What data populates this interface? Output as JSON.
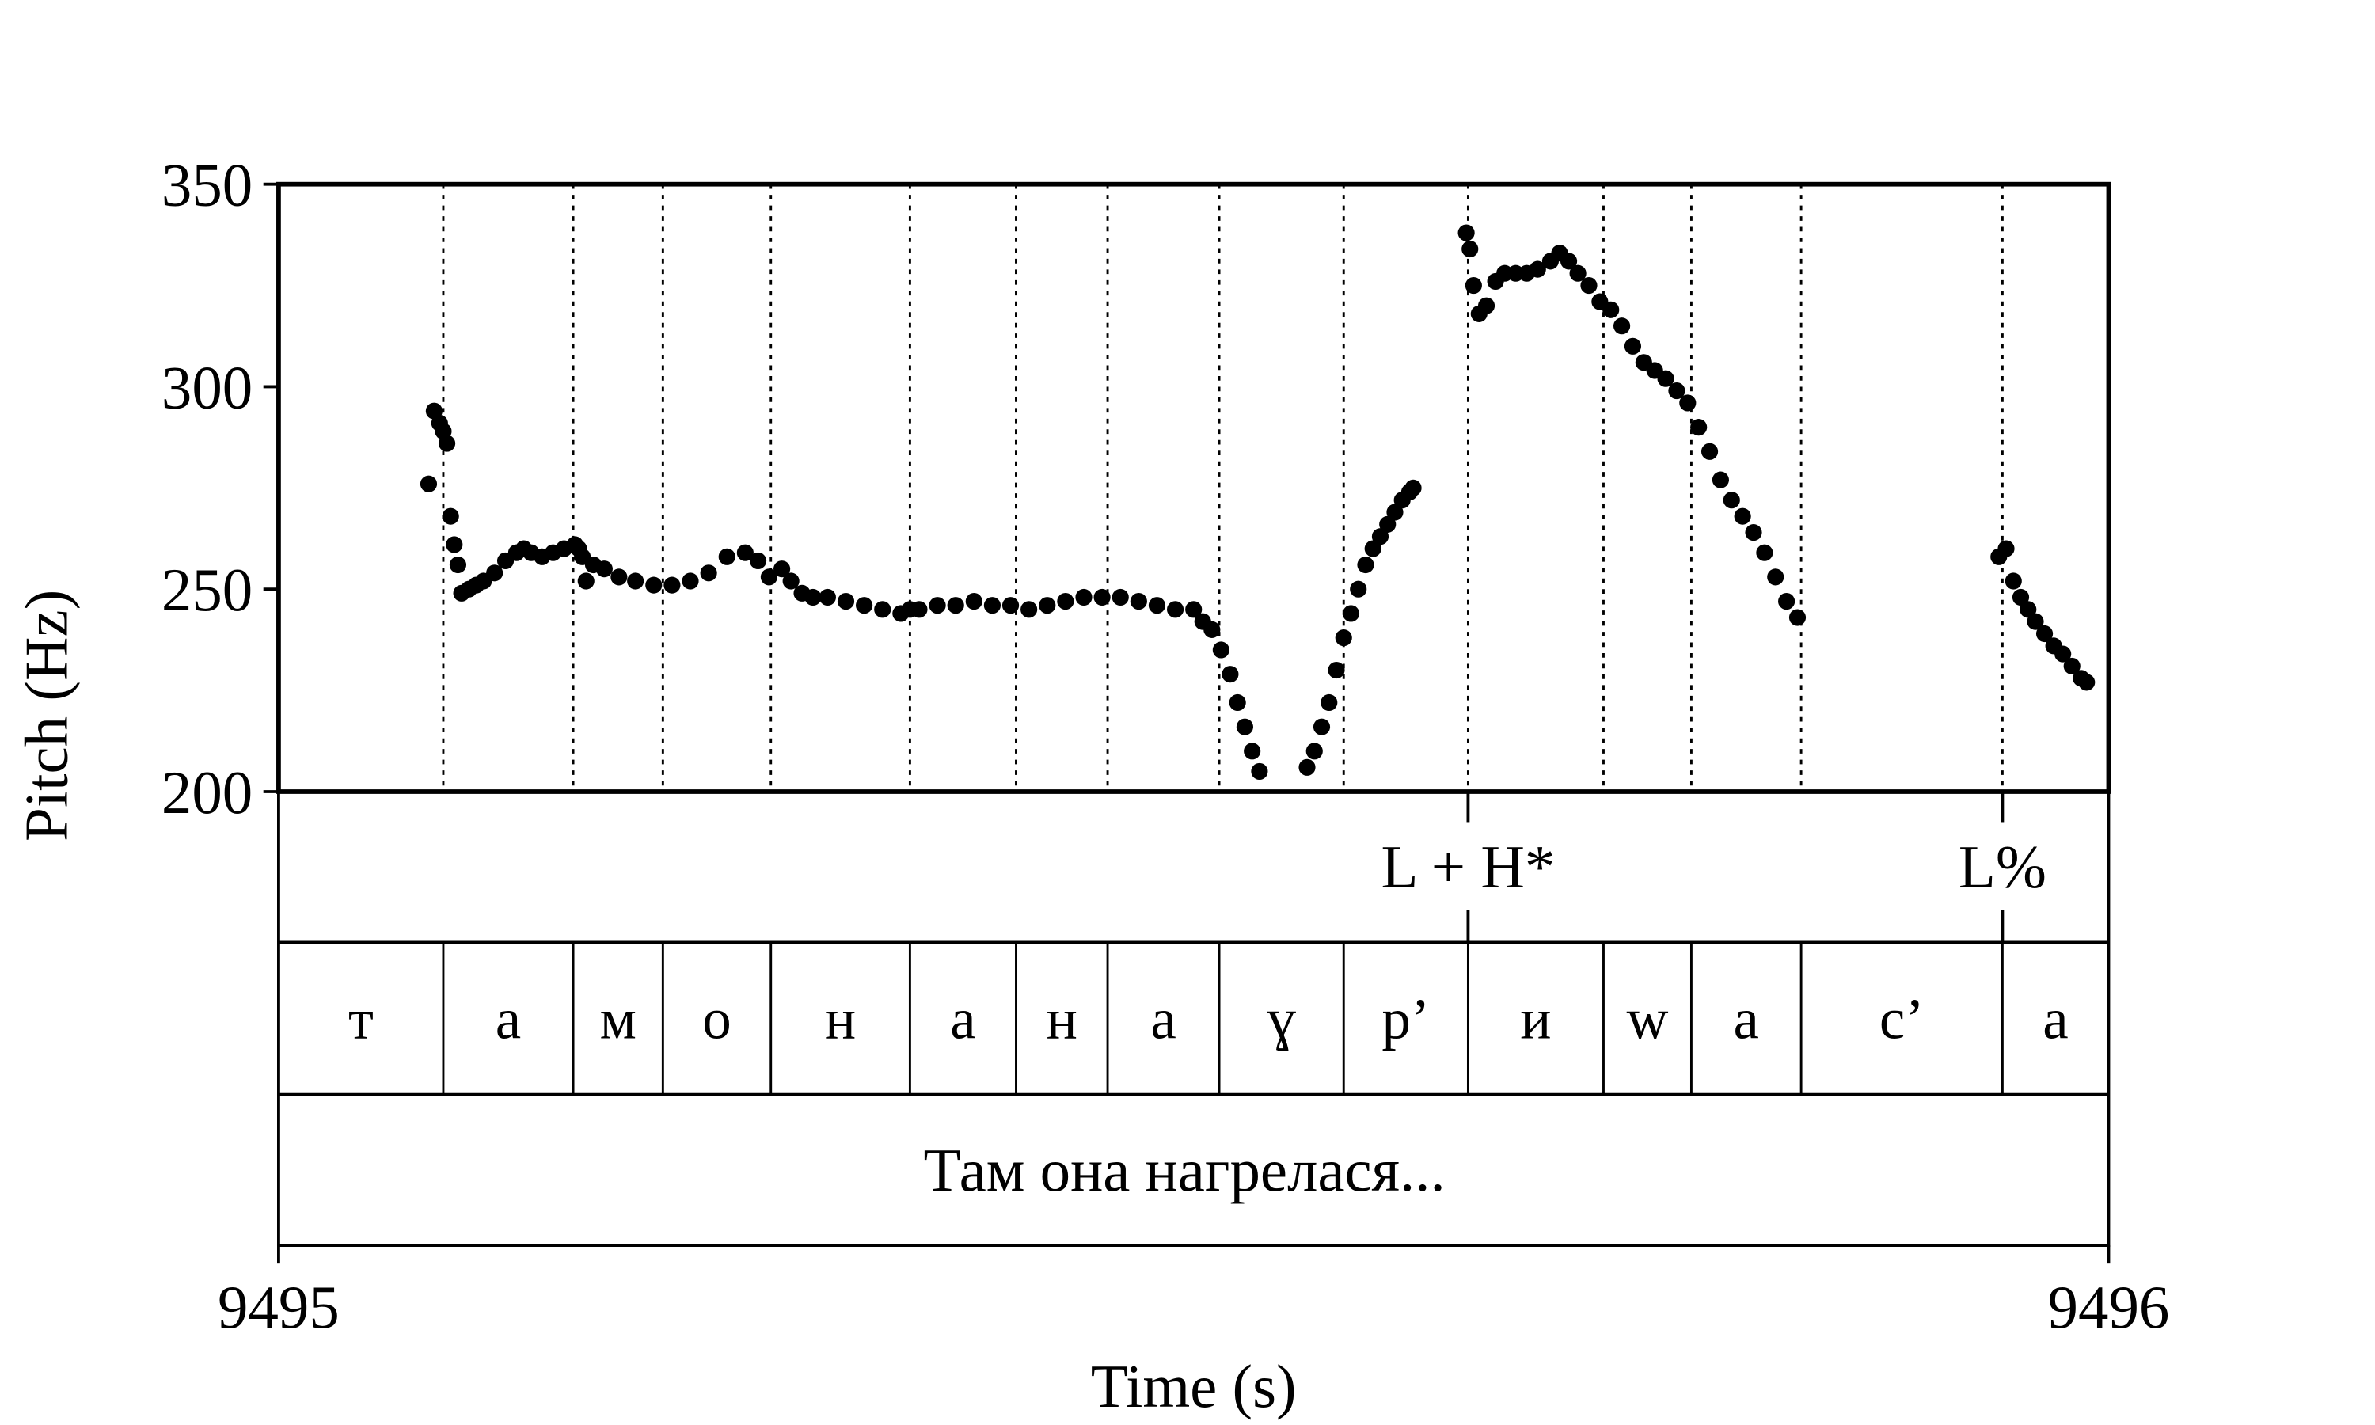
{
  "chart_data": {
    "type": "scatter",
    "xlabel": "Time (s)",
    "ylabel": "Pitch (Hz)",
    "xlim": [
      9495,
      9496
    ],
    "ylim": [
      200,
      350
    ],
    "x_ticks": [
      "9495",
      "9496"
    ],
    "y_ticks": [
      "200",
      "250",
      "300",
      "350"
    ],
    "grid": false,
    "boundaries": [
      9495.09,
      9495.161,
      9495.21,
      9495.269,
      9495.345,
      9495.403,
      9495.453,
      9495.514,
      9495.582,
      9495.65,
      9495.724,
      9495.772,
      9495.832,
      9495.942
    ],
    "segments": [
      "т",
      "а",
      "м",
      "о",
      "н",
      "а",
      "н",
      "а",
      "ɣ",
      "р’",
      "и",
      "w",
      "а",
      "с’",
      "а"
    ],
    "tone_labels": [
      {
        "t": 9495.65,
        "label": "L + H*"
      },
      {
        "t": 9495.942,
        "label": "L%"
      }
    ],
    "phrase": "Там она нагрелася...",
    "series": [
      {
        "t": [
          9495.082,
          9495.085,
          9495.088,
          9495.09,
          9495.092,
          9495.094,
          9495.096,
          9495.098,
          9495.1,
          9495.104,
          9495.108,
          9495.112,
          9495.118,
          9495.124,
          9495.13,
          9495.134,
          9495.138,
          9495.144,
          9495.15,
          9495.156,
          9495.162,
          9495.164,
          9495.166,
          9495.168,
          9495.172,
          9495.178,
          9495.186,
          9495.195,
          9495.205,
          9495.215,
          9495.225,
          9495.235,
          9495.245,
          9495.255,
          9495.262,
          9495.268,
          9495.275,
          9495.28,
          9495.286,
          9495.292,
          9495.3,
          9495.31,
          9495.32,
          9495.33,
          9495.34,
          9495.345,
          9495.35,
          9495.36,
          9495.37,
          9495.38,
          9495.39,
          9495.4,
          9495.41,
          9495.42,
          9495.43,
          9495.44,
          9495.45,
          9495.46,
          9495.47,
          9495.48,
          9495.49,
          9495.5,
          9495.505,
          9495.51,
          9495.515,
          9495.52,
          9495.524,
          9495.528,
          9495.532,
          9495.536
        ],
        "y": [
          276,
          294,
          291,
          289,
          286,
          268,
          261,
          256,
          249,
          250,
          251,
          252,
          254,
          257,
          259,
          260,
          259,
          258,
          259,
          260,
          261,
          260,
          258,
          252,
          256,
          255,
          253,
          252,
          251,
          251,
          252,
          254,
          258,
          259,
          257,
          253,
          255,
          252,
          249,
          248,
          248,
          247,
          246,
          245,
          244,
          245,
          245,
          246,
          246,
          247,
          246,
          246,
          245,
          246,
          247,
          248,
          248,
          248,
          247,
          246,
          245,
          245,
          242,
          240,
          235,
          229,
          222,
          216,
          210,
          205
        ]
      },
      {
        "t": [
          9495.562,
          9495.566,
          9495.57,
          9495.574,
          9495.578,
          9495.582,
          9495.586,
          9495.59,
          9495.594,
          9495.598,
          9495.602,
          9495.606,
          9495.61,
          9495.614,
          9495.618,
          9495.62
        ],
        "y": [
          206,
          210,
          216,
          222,
          230,
          238,
          244,
          250,
          256,
          260,
          263,
          266,
          269,
          272,
          274,
          275
        ]
      },
      {
        "t": [
          9495.649,
          9495.651,
          9495.653,
          9495.656,
          9495.66,
          9495.665,
          9495.67,
          9495.676,
          9495.682,
          9495.688,
          9495.695,
          9495.7,
          9495.705,
          9495.71,
          9495.716,
          9495.722,
          9495.728,
          9495.734,
          9495.74,
          9495.746,
          9495.752,
          9495.758,
          9495.764,
          9495.77,
          9495.776,
          9495.782,
          9495.788,
          9495.794,
          9495.8,
          9495.806,
          9495.812,
          9495.818,
          9495.824,
          9495.83
        ],
        "y": [
          338,
          334,
          325,
          318,
          320,
          326,
          328,
          328,
          328,
          329,
          331,
          333,
          331,
          328,
          325,
          321,
          319,
          315,
          310,
          306,
          304,
          302,
          299,
          296,
          290,
          284,
          277,
          272,
          268,
          264,
          259,
          253,
          247,
          243
        ]
      },
      {
        "t": [
          9495.94,
          9495.944,
          9495.948,
          9495.952,
          9495.956,
          9495.96,
          9495.965,
          9495.97,
          9495.975,
          9495.98,
          9495.985,
          9495.988
        ],
        "y": [
          258,
          260,
          252,
          248,
          245,
          242,
          239,
          236,
          234,
          231,
          228,
          227
        ]
      }
    ]
  }
}
